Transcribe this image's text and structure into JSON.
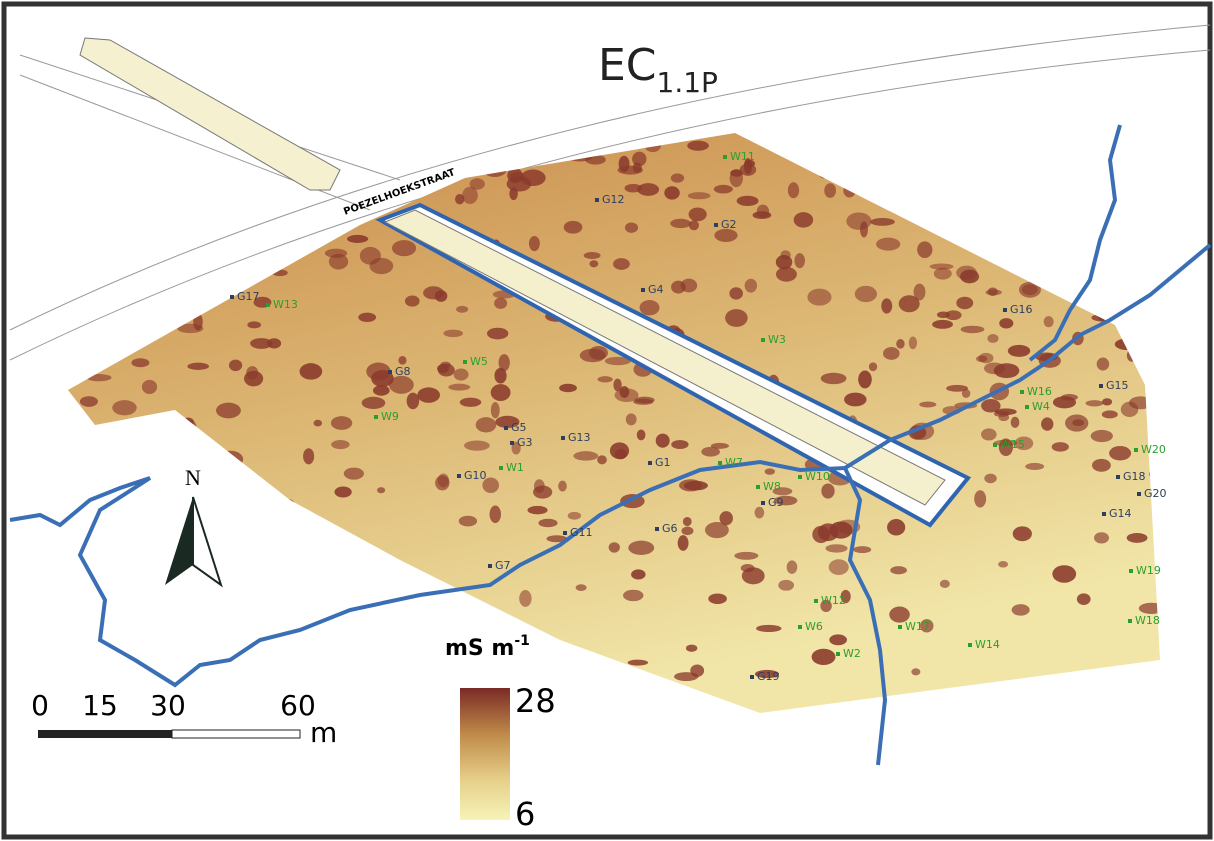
{
  "title": {
    "main": "EC",
    "sub": "1.1P"
  },
  "street": "POEZELHOEKSTRAAT",
  "north": "N",
  "g_points": [
    "G12",
    "G2",
    "G4",
    "G16",
    "G17",
    "G8",
    "G5",
    "G3",
    "G13",
    "G1",
    "G10",
    "G9",
    "G6",
    "G11",
    "G7",
    "G19",
    "G15",
    "G18",
    "G20",
    "G14"
  ],
  "w_points": [
    "W11",
    "W13",
    "W3",
    "W5",
    "W9",
    "W1",
    "W7",
    "W8",
    "W10",
    "W16",
    "W4",
    "W15",
    "W20",
    "W19",
    "W18",
    "W12",
    "W6",
    "W17",
    "W14",
    "W2"
  ],
  "legend": {
    "title": "mS m",
    "title_sup": "-1",
    "max": 28,
    "min": 6
  },
  "scale_bar": {
    "ticks": [
      0,
      15,
      30,
      60
    ],
    "unit": "m"
  }
}
